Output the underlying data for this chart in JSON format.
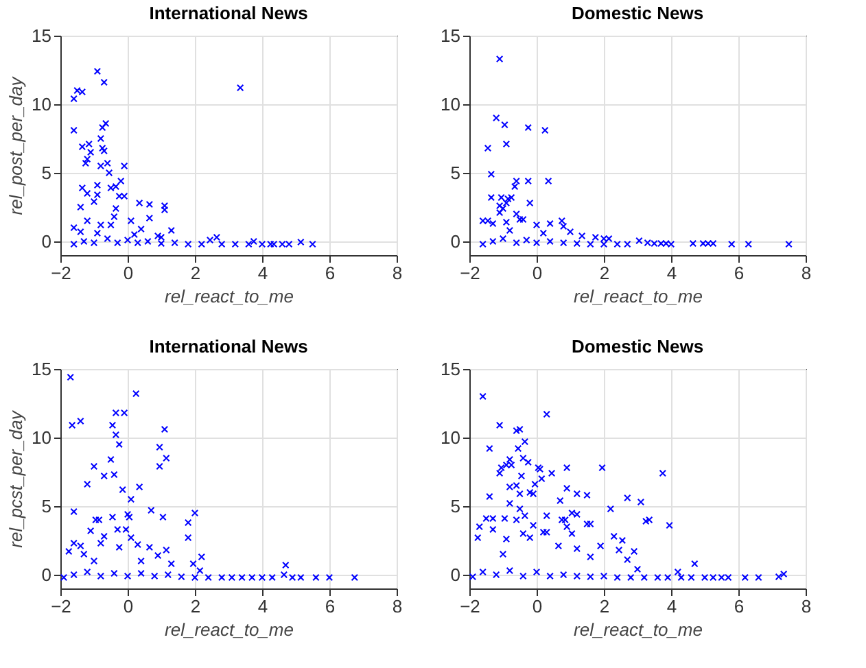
{
  "chart_data": [
    {
      "type": "scatter",
      "title": "International News",
      "xlabel": "rel_react_to_me",
      "ylabel": "rel_post_per_day",
      "color": "#0000ff",
      "marker": "cross",
      "grid": true,
      "xlim": [
        -2,
        8
      ],
      "xticks": [
        -2,
        0,
        2,
        4,
        6,
        8
      ],
      "ylim": [
        -1,
        15
      ],
      "yticks": [
        0,
        5,
        10,
        15
      ],
      "x": [
        -0.9,
        -0.7,
        -1.5,
        -1.35,
        -1.6,
        3.35,
        -1.6,
        -0.65,
        -0.75,
        -1.35,
        -1.15,
        -0.8,
        -0.75,
        -1.1,
        -0.7,
        -1.2,
        -1.25,
        -0.8,
        -0.6,
        -0.55,
        -0.1,
        -1.35,
        -0.9,
        -0.2,
        -0.35,
        -0.5,
        -1.2,
        -0.9,
        -0.25,
        -0.1,
        -1.0,
        -1.4,
        -0.35,
        0.35,
        0.65,
        1.1,
        1.1,
        0.65,
        0.1,
        -0.4,
        -1.2,
        -0.8,
        1.3,
        0.4,
        -1.6,
        -0.5,
        0.9,
        2.65,
        2.45,
        3.75,
        1.0,
        0.2,
        -1.4,
        -0.9,
        -1.6,
        -1.3,
        -1.0,
        -0.6,
        -0.3,
        0.0,
        0.3,
        0.6,
        1.0,
        1.4,
        1.8,
        2.2,
        2.8,
        3.2,
        3.6,
        4.0,
        4.25,
        4.35,
        4.6,
        4.8,
        5.15,
        5.5
      ],
      "values": [
        12.4,
        11.6,
        11,
        10.9,
        10.4,
        11.2,
        8.1,
        8.6,
        8.3,
        6.9,
        7.1,
        7.5,
        6.8,
        6.5,
        6.6,
        6,
        5.7,
        5.5,
        5.7,
        5,
        5.5,
        3.9,
        4.1,
        4.4,
        4,
        3.9,
        3.5,
        3.4,
        3.3,
        3.3,
        2.9,
        2.5,
        2.4,
        2.8,
        2.7,
        2.6,
        2.3,
        1.7,
        1.5,
        1.8,
        1.5,
        1.2,
        0.8,
        0.9,
        1.0,
        1.2,
        0.4,
        0.3,
        0.1,
        0,
        0.3,
        0.5,
        0.7,
        0.6,
        -0.2,
        0,
        -0.1,
        0.2,
        -0.1,
        0.1,
        -0.1,
        0,
        -0.15,
        -0.1,
        -0.2,
        -0.2,
        -0.2,
        -0.2,
        -0.2,
        -0.2,
        -0.2,
        -0.2,
        -0.2,
        -0.2,
        -0.05,
        -0.2
      ]
    },
    {
      "type": "scatter",
      "title": "Domestic News",
      "xlabel": "rel_react_to_me",
      "color": "#0000ff",
      "marker": "cross",
      "grid": true,
      "xlim": [
        -2,
        8
      ],
      "xticks": [
        -2,
        0,
        2,
        4,
        6,
        8
      ],
      "ylim": [
        -1,
        15
      ],
      "yticks": [
        0,
        5,
        10,
        15
      ],
      "x": [
        -1.1,
        -1.2,
        -0.95,
        -0.25,
        0.25,
        -0.9,
        -1.45,
        -1.35,
        -0.6,
        -0.25,
        0.35,
        -0.65,
        -1.35,
        -1.05,
        -0.85,
        -0.75,
        -0.2,
        -1.1,
        -0.9,
        -1.0,
        -0.6,
        -1.1,
        -1.6,
        -1.45,
        -0.5,
        -0.4,
        0.0,
        0.4,
        0.75,
        0.8,
        1.0,
        -1.3,
        -0.9,
        1.35,
        1.75,
        2.0,
        2.15,
        0.2,
        -0.8,
        -1.6,
        -1.3,
        -1.0,
        -0.6,
        -0.3,
        0.0,
        0.4,
        0.8,
        1.2,
        1.6,
        2.0,
        2.4,
        2.7,
        3.05,
        3.3,
        3.5,
        3.7,
        3.85,
        4.0,
        4.65,
        4.95,
        5.1,
        5.25,
        5.8,
        6.3,
        7.5
      ],
      "values": [
        13.3,
        9,
        8.5,
        8.3,
        8.1,
        7.1,
        6.8,
        4.9,
        4.4,
        4.4,
        4.4,
        4,
        3.2,
        3.2,
        3.1,
        3.2,
        2.8,
        2.6,
        2.8,
        2.4,
        2.0,
        2.1,
        1.5,
        1.5,
        1.6,
        1.6,
        1.2,
        1.3,
        1.5,
        1.1,
        0.7,
        1.3,
        1.4,
        0.4,
        0.3,
        0.2,
        0.2,
        0.6,
        0.8,
        -0.2,
        0,
        0.2,
        -0.1,
        0.1,
        -0.1,
        0,
        -0.1,
        -0.15,
        -0.2,
        -0.2,
        -0.2,
        -0.2,
        0.05,
        -0.1,
        -0.15,
        -0.15,
        -0.15,
        -0.2,
        -0.15,
        -0.15,
        -0.15,
        -0.15,
        -0.2,
        -0.2,
        -0.2
      ]
    },
    {
      "type": "scatter",
      "title": "International News",
      "xlabel": "rel_react_to_me",
      "ylabel": "rel_pcst_per_day",
      "color": "#0000ff",
      "marker": "cross",
      "grid": true,
      "xlim": [
        -2,
        8
      ],
      "xticks": [
        -2,
        0,
        2,
        4,
        6,
        8
      ],
      "ylim": [
        -1,
        15
      ],
      "yticks": [
        0,
        5,
        10,
        15
      ],
      "x": [
        -1.7,
        0.25,
        -1.65,
        -1.4,
        -0.35,
        -0.1,
        -0.45,
        -0.35,
        -0.25,
        1.1,
        0.95,
        1.15,
        -0.5,
        -1.0,
        0.95,
        -0.7,
        -0.4,
        -1.2,
        0.35,
        -0.15,
        0.1,
        -1.6,
        0.7,
        2.0,
        -0.95,
        -0.85,
        -0.45,
        0.0,
        0.05,
        1.05,
        1.8,
        -1.1,
        -0.3,
        -0.05,
        0.1,
        -0.7,
        1.8,
        -1.6,
        -1.4,
        -0.8,
        0.3,
        0.65,
        -0.25,
        1.15,
        -1.75,
        -1.3,
        2.2,
        0.9,
        1.95,
        1.3,
        2.15,
        4.7,
        -1.0,
        0.4,
        -1.9,
        -1.6,
        -1.2,
        -0.8,
        -0.4,
        0.0,
        0.4,
        0.8,
        1.2,
        1.6,
        2.0,
        2.4,
        2.8,
        3.1,
        3.4,
        3.7,
        4.0,
        4.3,
        4.65,
        4.9,
        5.15,
        5.6,
        6.0,
        6.75
      ],
      "values": [
        14.4,
        13.2,
        10.9,
        11.2,
        11.8,
        11.8,
        10.9,
        10.2,
        9.5,
        10.6,
        9.3,
        8.5,
        8.4,
        7.9,
        7.9,
        7.2,
        7.3,
        6.6,
        6.4,
        6.2,
        5.5,
        4.6,
        4.7,
        4.5,
        4.0,
        4.0,
        4.2,
        4.4,
        4.2,
        4.2,
        3.8,
        3.2,
        3.3,
        3.3,
        2.7,
        2.8,
        2.7,
        2.3,
        2.1,
        2.3,
        2.2,
        2.0,
        2.0,
        1.8,
        1.7,
        1.5,
        1.3,
        1.4,
        0.8,
        0.8,
        0.3,
        0.7,
        1.0,
        1.0,
        -0.2,
        0,
        0.2,
        -0.1,
        0.1,
        -0.1,
        0.1,
        -0.1,
        0,
        -0.15,
        -0.2,
        -0.2,
        -0.2,
        -0.2,
        -0.2,
        -0.2,
        -0.2,
        -0.2,
        0,
        -0.2,
        -0.2,
        -0.2,
        -0.2,
        -0.2
      ]
    },
    {
      "type": "scatter",
      "title": "Domestic News",
      "xlabel": "rel_react_to_me",
      "color": "#0000ff",
      "marker": "cross",
      "grid": true,
      "xlim": [
        -2,
        8
      ],
      "xticks": [
        -2,
        0,
        2,
        4,
        6,
        8
      ],
      "ylim": [
        -1,
        15
      ],
      "yticks": [
        0,
        5,
        10,
        15
      ],
      "x": [
        -1.6,
        0.3,
        -1.1,
        -0.6,
        -0.5,
        -0.35,
        -1.4,
        -0.55,
        -0.8,
        -0.4,
        -0.25,
        -1.05,
        -0.9,
        -0.75,
        -1.1,
        -0.45,
        0.05,
        0.1,
        0.15,
        0.45,
        0.9,
        1.95,
        3.75,
        -0.05,
        -0.6,
        -0.8,
        0.9,
        -0.2,
        -0.5,
        -0.1,
        1.2,
        1.5,
        2.7,
        3.1,
        0.7,
        -0.8,
        -0.5,
        -1.4,
        2.2,
        1.05,
        1.2,
        -0.35,
        0.3,
        0.75,
        0.85,
        -1.3,
        -1.5,
        -0.95,
        -0.6,
        3.25,
        3.35,
        3.95,
        1.5,
        1.6,
        0.9,
        -0.1,
        0.2,
        0.3,
        -0.4,
        -1.3,
        -1.7,
        -1.75,
        -0.9,
        2.3,
        2.55,
        2.45,
        1.05,
        1.9,
        2.9,
        -0.2,
        0.65,
        1.2,
        2.7,
        3.0,
        1.6,
        -1.0,
        4.7,
        4.2,
        -1.9,
        -1.6,
        -1.2,
        -0.8,
        -0.4,
        0.0,
        0.4,
        0.8,
        1.2,
        1.6,
        2.0,
        2.4,
        2.8,
        3.2,
        3.6,
        3.9,
        4.3,
        4.6,
        5.0,
        5.25,
        5.5,
        5.7,
        6.2,
        6.6,
        7.2,
        7.35
      ],
      "values": [
        13,
        11.7,
        10.9,
        10.5,
        10.6,
        9.7,
        9.2,
        9.2,
        8.4,
        8.5,
        8.2,
        7.8,
        8.0,
        8.0,
        7.4,
        7.2,
        7.8,
        7.7,
        7.0,
        7.4,
        7.8,
        7.8,
        7.4,
        6.6,
        6.5,
        6.4,
        6.3,
        6.0,
        5.9,
        5.9,
        5.9,
        5.8,
        5.6,
        5.3,
        5.4,
        5.2,
        4.8,
        5.7,
        4.8,
        4.5,
        4.4,
        4.3,
        4.3,
        4.0,
        4.0,
        4.1,
        4.1,
        4.1,
        4.0,
        3.9,
        4.0,
        3.6,
        3.7,
        3.7,
        3.5,
        3.6,
        3.1,
        3.1,
        3.0,
        3.3,
        3.5,
        2.7,
        2.6,
        2.8,
        2.5,
        1.8,
        3.0,
        2.1,
        1.7,
        2.7,
        2.1,
        1.9,
        1.1,
        0.4,
        1.3,
        1.5,
        0.8,
        0.2,
        -0.15,
        0.2,
        0,
        0.3,
        -0.1,
        0.2,
        -0.1,
        0,
        -0.1,
        -0.15,
        -0.1,
        -0.2,
        -0.2,
        -0.2,
        -0.2,
        -0.2,
        -0.2,
        -0.2,
        -0.2,
        -0.2,
        -0.2,
        -0.2,
        -0.2,
        -0.2,
        -0.15,
        0.05
      ]
    }
  ]
}
